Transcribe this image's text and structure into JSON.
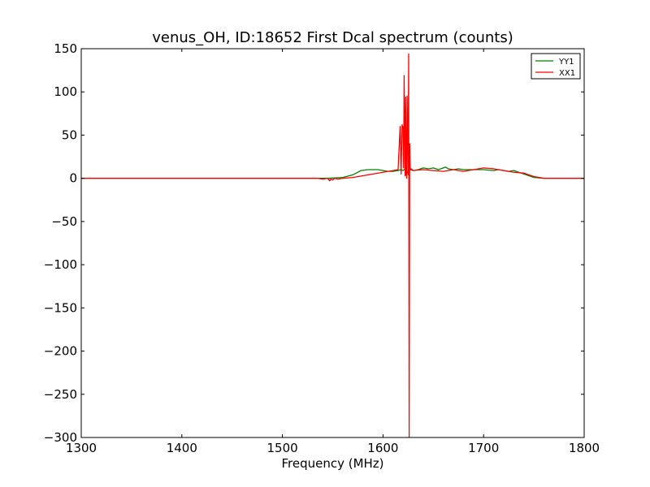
{
  "chart_data": {
    "type": "line",
    "title": "venus_OH, ID:18652 First Dcal spectrum (counts)",
    "xlabel": "Frequency (MHz)",
    "ylabel": "",
    "xlim": [
      1300,
      1800
    ],
    "ylim": [
      -300,
      150
    ],
    "xticks": [
      1300,
      1400,
      1500,
      1600,
      1700,
      1800
    ],
    "yticks": [
      150,
      100,
      50,
      0,
      -50,
      -100,
      -150,
      -200,
      -250,
      -300
    ],
    "grid": false,
    "legend_position": "top-right",
    "series": [
      {
        "name": "YY1",
        "color": "#008000",
        "x": [
          1300,
          1400,
          1500,
          1530,
          1545,
          1560,
          1570,
          1575,
          1578,
          1585,
          1595,
          1600,
          1605,
          1610,
          1615,
          1618,
          1620,
          1622,
          1623,
          1625,
          1627,
          1630,
          1635,
          1640,
          1645,
          1650,
          1655,
          1660,
          1662,
          1665,
          1670,
          1675,
          1680,
          1690,
          1700,
          1710,
          1715,
          1720,
          1725,
          1730,
          1735,
          1740,
          1745,
          1750,
          1760,
          1770,
          1800
        ],
        "y": [
          0,
          0,
          0,
          0,
          0,
          1,
          4,
          7,
          9,
          10,
          10,
          9,
          8,
          8,
          9,
          10,
          9,
          11,
          4,
          9,
          10,
          9,
          10,
          12,
          11,
          12,
          10,
          12,
          13,
          11,
          10,
          11,
          10,
          10,
          10,
          9,
          10,
          9,
          8,
          9,
          7,
          5,
          3,
          1,
          0,
          0,
          0
        ]
      },
      {
        "name": "XX1",
        "color": "#ff0000",
        "x": [
          1300,
          1400,
          1500,
          1535,
          1540,
          1545,
          1547,
          1548,
          1550,
          1552,
          1555,
          1560,
          1570,
          1580,
          1590,
          1600,
          1605,
          1610,
          1615,
          1617,
          1618,
          1619,
          1620,
          1620.5,
          1621,
          1622,
          1622.5,
          1623,
          1623.5,
          1624,
          1625,
          1625.5,
          1626,
          1626.5,
          1627,
          1628,
          1630,
          1640,
          1650,
          1660,
          1670,
          1680,
          1690,
          1700,
          1710,
          1720,
          1730,
          1740,
          1750,
          1760,
          1800
        ],
        "y": [
          0,
          0,
          0,
          0,
          -1,
          0,
          -3,
          -1,
          -2,
          0,
          -1,
          0,
          1,
          3,
          5,
          7,
          8,
          9,
          10,
          60,
          5,
          62,
          58,
          12,
          119,
          3,
          94,
          10,
          0,
          95,
          4,
          144,
          -300,
          40,
          10,
          11,
          9,
          10,
          9,
          8,
          10,
          8,
          10,
          12,
          11,
          9,
          7,
          6,
          2,
          0,
          0
        ]
      }
    ]
  }
}
